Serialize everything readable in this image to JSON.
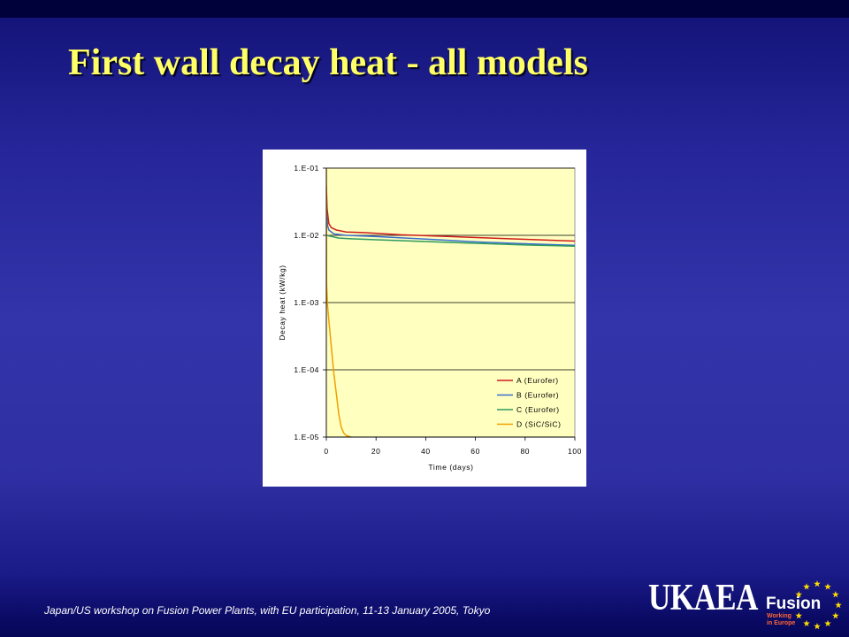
{
  "slide": {
    "title": "First wall decay heat - all models",
    "title_color": "#ffff66",
    "footer": "Japan/US workshop on Fusion Power Plants, with EU participation, 11-13 January 2005, Tokyo"
  },
  "logo": {
    "org": "UKAEA",
    "program": "Fusion",
    "tagline_line1": "Working",
    "tagline_line2": "in Europe",
    "star_icon": "eu-star",
    "star_color": "#ffdd00",
    "tagline_color": "#ff6633"
  },
  "chart_data": {
    "type": "line",
    "xlabel": "Time (days)",
    "ylabel": "Decay heat (kW/kg)",
    "xlim": [
      0,
      100
    ],
    "ylim": [
      1e-05,
      0.1
    ],
    "yscale": "log",
    "x_ticks": [
      0,
      20,
      40,
      60,
      80,
      100
    ],
    "x_tick_labels": [
      "0",
      "20",
      "40",
      "60",
      "80",
      "100"
    ],
    "y_ticks": [
      1e-05,
      0.0001,
      0.001,
      0.01,
      0.1
    ],
    "y_tick_labels": [
      "1.E-05",
      "1.E-04",
      "1.E-03",
      "1.E-02",
      "1.E-01"
    ],
    "grid": true,
    "grid_axis": "y",
    "legend": "lower-right",
    "plot_background": "#ffffc0",
    "series": [
      {
        "name": "A (Eurofer)",
        "color": "#d01c1c",
        "x": [
          0,
          0.3,
          1,
          2,
          4,
          8,
          15,
          30,
          50,
          70,
          100
        ],
        "y": [
          0.055,
          0.025,
          0.015,
          0.013,
          0.012,
          0.0112,
          0.011,
          0.0102,
          0.0096,
          0.009,
          0.0082
        ]
      },
      {
        "name": "B (Eurofer)",
        "color": "#3a6fd0",
        "x": [
          0,
          0.5,
          1,
          3,
          8,
          20,
          40,
          60,
          80,
          100
        ],
        "y": [
          0.025,
          0.014,
          0.012,
          0.0105,
          0.01,
          0.0096,
          0.0088,
          0.008,
          0.0075,
          0.0071
        ]
      },
      {
        "name": "C (Eurofer)",
        "color": "#2e9a5e",
        "x": [
          0,
          5,
          10,
          20,
          40,
          60,
          80,
          100
        ],
        "y": [
          0.01,
          0.0091,
          0.0089,
          0.0086,
          0.0081,
          0.0076,
          0.0072,
          0.0069
        ]
      },
      {
        "name": "D (SiC/SiC)",
        "color": "#f0a000",
        "x": [
          0,
          0.1,
          0.5,
          1,
          2,
          3,
          4,
          5,
          6,
          7,
          8,
          10
        ],
        "y": [
          0.1,
          0.0018,
          0.0009,
          0.00055,
          0.00022,
          9e-05,
          4.5e-05,
          2.2e-05,
          1.4e-05,
          1.15e-05,
          1.05e-05,
          1e-05
        ]
      }
    ]
  }
}
